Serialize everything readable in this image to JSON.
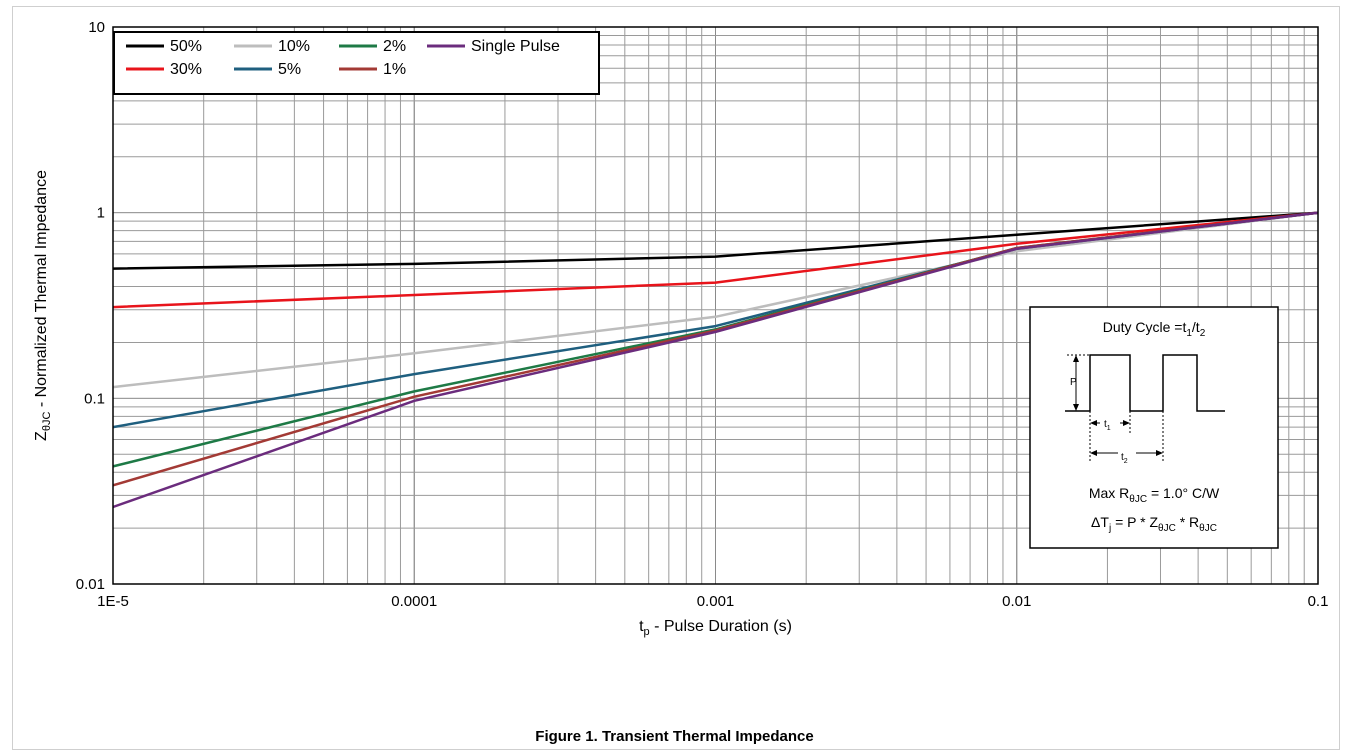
{
  "caption": "Figure 1.  Transient Thermal Impedance",
  "chart_data": {
    "type": "line",
    "title": "",
    "xlabel_main": "t",
    "xlabel_sub": "p",
    "xlabel_rest": " - Pulse Duration (s)",
    "ylabel_main": "Z",
    "ylabel_sub": "θJC",
    "ylabel_rest": " - Normalized Thermal Impedance",
    "x_scale": "log",
    "y_scale": "log",
    "xlim": [
      1e-05,
      0.1
    ],
    "ylim": [
      0.01,
      10
    ],
    "x_ticks": [
      {
        "value": 1e-05,
        "label": "1E-5"
      },
      {
        "value": 0.0001,
        "label": "0.0001"
      },
      {
        "value": 0.001,
        "label": "0.001"
      },
      {
        "value": 0.01,
        "label": "0.01"
      },
      {
        "value": 0.1,
        "label": "0.1"
      }
    ],
    "y_ticks": [
      {
        "value": 0.01,
        "label": "0.01"
      },
      {
        "value": 0.1,
        "label": "0.1"
      },
      {
        "value": 1,
        "label": "1"
      },
      {
        "value": 10,
        "label": "10"
      }
    ],
    "grid": true,
    "legend_position": "top-left",
    "series": [
      {
        "name": "50%",
        "color": "#000000",
        "x": [
          1e-05,
          0.0001,
          0.001,
          0.01,
          0.1
        ],
        "y": [
          0.5,
          0.53,
          0.58,
          0.76,
          1.0
        ]
      },
      {
        "name": "30%",
        "color": "#e8141b",
        "x": [
          1e-05,
          0.0001,
          0.001,
          0.01,
          0.1
        ],
        "y": [
          0.31,
          0.36,
          0.42,
          0.68,
          1.0
        ]
      },
      {
        "name": "10%",
        "color": "#bdbdbd",
        "x": [
          1e-05,
          0.0001,
          0.001,
          0.01,
          0.1
        ],
        "y": [
          0.115,
          0.175,
          0.275,
          0.62,
          1.0
        ]
      },
      {
        "name": "5%",
        "color": "#1f5f7f",
        "x": [
          1e-05,
          0.0001,
          0.001,
          0.01,
          0.1
        ],
        "y": [
          0.07,
          0.135,
          0.245,
          0.64,
          1.0
        ]
      },
      {
        "name": "2%",
        "color": "#1e7a46",
        "x": [
          1e-05,
          0.0001,
          0.001,
          0.01,
          0.1
        ],
        "y": [
          0.043,
          0.109,
          0.235,
          0.645,
          1.0
        ]
      },
      {
        "name": "1%",
        "color": "#a33a35",
        "x": [
          1e-05,
          0.0001,
          0.001,
          0.01,
          0.1
        ],
        "y": [
          0.034,
          0.102,
          0.232,
          0.645,
          1.0
        ]
      },
      {
        "name": "Single Pulse",
        "color": "#6b2c7d",
        "x": [
          1e-05,
          0.0001,
          0.001,
          0.01,
          0.1
        ],
        "y": [
          0.026,
          0.097,
          0.228,
          0.64,
          1.0
        ]
      }
    ],
    "legend_order": [
      "50%",
      "10%",
      "2%",
      "Single Pulse",
      "30%",
      "5%",
      "1%"
    ],
    "annotations": {
      "duty_cycle_label": "Duty Cycle =t",
      "duty_sub1": "1",
      "duty_slash": "/t",
      "duty_sub2": "2",
      "p_label": "P",
      "t1_label": "t",
      "t1_sub": "1",
      "t2_label": "t",
      "t2_sub": "2",
      "rmax_prefix": "Max R",
      "rmax_sub": "θJC",
      "rmax_rest": " = 1.0° C/W",
      "dtj_prefix": "ΔT",
      "dtj_sub_j": "j",
      "dtj_mid": " = P * Z",
      "dtj_sub_z": "θJC",
      "dtj_mid2": " * R",
      "dtj_sub_r": "θJC"
    }
  }
}
